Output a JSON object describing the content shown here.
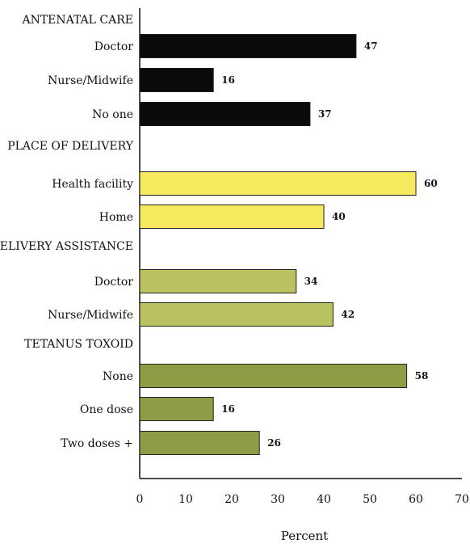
{
  "chart_data": {
    "type": "bar",
    "orientation": "horizontal",
    "xlabel": "Percent",
    "xlim": [
      0,
      70
    ],
    "xticks": [
      0,
      10,
      20,
      30,
      40,
      50,
      60,
      70
    ],
    "grid": false,
    "groups": [
      {
        "title": "ANTENATAL CARE",
        "color": "#0a0a0a",
        "bars": [
          {
            "label": "Doctor",
            "value": 47
          },
          {
            "label": "Nurse/Midwife",
            "value": 16
          },
          {
            "label": "No one",
            "value": 37
          }
        ]
      },
      {
        "title": "PLACE OF DELIVERY",
        "color": "#f7e95c",
        "bars": [
          {
            "label": "Health facility",
            "value": 60
          },
          {
            "label": "Home",
            "value": 40
          }
        ]
      },
      {
        "title": "DELIVERY ASSISTANCE",
        "color": "#b9c25e",
        "bars": [
          {
            "label": "Doctor",
            "value": 34
          },
          {
            "label": "Nurse/Midwife",
            "value": 42
          }
        ]
      },
      {
        "title": "TETANUS TOXOID",
        "color": "#8d9d45",
        "bars": [
          {
            "label": "None",
            "value": 58
          },
          {
            "label": "One dose",
            "value": 16
          },
          {
            "label": "Two doses +",
            "value": 26
          }
        ]
      }
    ]
  }
}
